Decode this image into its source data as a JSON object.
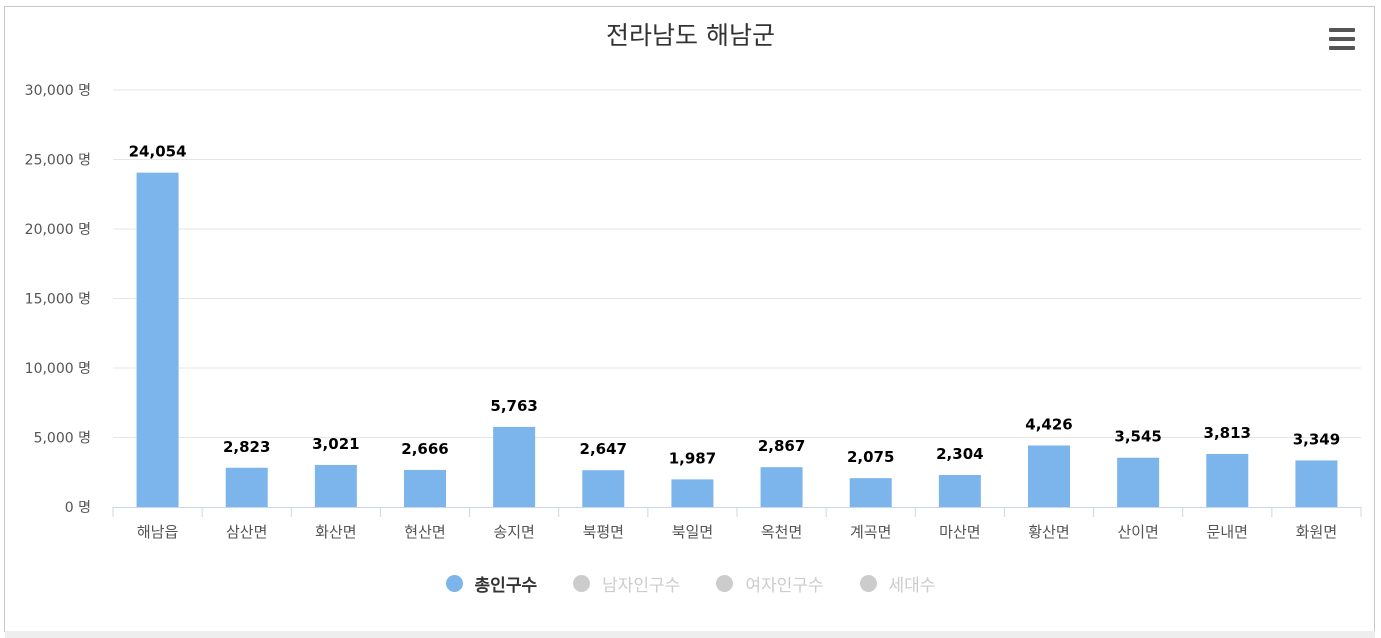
{
  "title": "전라남도 해남군",
  "menu_icon": "hamburger-menu-icon",
  "colors": {
    "bar": "#7cb5ec",
    "inactive": "#cccccc",
    "grid": "#e6e6e6",
    "axis": "#ccd6eb"
  },
  "chart_data": {
    "type": "bar",
    "title": "전라남도 해남군",
    "categories": [
      "해남읍",
      "삼산면",
      "화산면",
      "현산면",
      "송지면",
      "북평면",
      "북일면",
      "옥천면",
      "계곡면",
      "마산면",
      "황산면",
      "산이면",
      "문내면",
      "화원면"
    ],
    "series": [
      {
        "name": "총인구수",
        "values": [
          24054,
          2823,
          3021,
          2666,
          5763,
          2647,
          1987,
          2867,
          2075,
          2304,
          4426,
          3545,
          3813,
          3349
        ],
        "visible": true
      }
    ],
    "value_labels": [
      "24,054",
      "2,823",
      "3,021",
      "2,666",
      "5,763",
      "2,647",
      "1,987",
      "2,867",
      "2,075",
      "2,304",
      "4,426",
      "3,545",
      "3,813",
      "3,349"
    ],
    "y_ticks": [
      "0 명",
      "5,000 명",
      "10,000 명",
      "15,000 명",
      "20,000 명",
      "25,000 명",
      "30,000 명"
    ],
    "ylim": [
      0,
      30000
    ],
    "grid": true,
    "legend_position": "bottom-center"
  },
  "legend": [
    {
      "label": "총인구수",
      "active": true
    },
    {
      "label": "남자인구수",
      "active": false
    },
    {
      "label": "여자인구수",
      "active": false
    },
    {
      "label": "세대수",
      "active": false
    }
  ]
}
